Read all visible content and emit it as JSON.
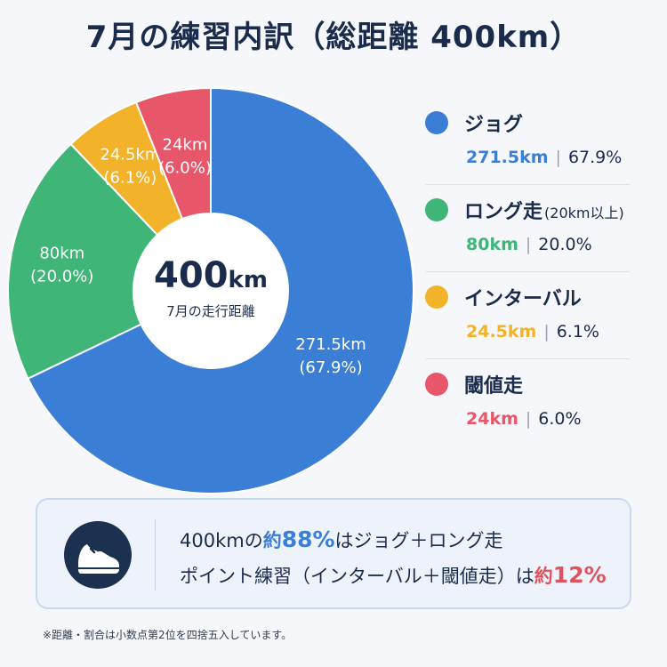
{
  "title": "7月の練習内訳（総距離 400km）",
  "chart_data": {
    "type": "pie",
    "title": "7月の練習内訳（総距離 400km）",
    "donut": true,
    "center": {
      "total": "400",
      "unit": "km",
      "label": "7月の走行距離"
    },
    "slices": [
      {
        "name": "ジョグ",
        "note": "",
        "value": 271.5,
        "value_label": "271.5km",
        "percent_label": "(67.9%)",
        "legend_km": "271.5km",
        "legend_pct": "67.9%",
        "color": "#3a7fd5"
      },
      {
        "name": "ロング走",
        "note": "(20km以上)",
        "value": 80,
        "value_label": "80km",
        "percent_label": "(20.0%)",
        "legend_km": "80km",
        "legend_pct": "20.0%",
        "color": "#3fb577"
      },
      {
        "name": "インターバル",
        "note": "",
        "value": 24.5,
        "value_label": "24.5km",
        "percent_label": "(6.1%)",
        "legend_km": "24.5km",
        "legend_pct": "6.1%",
        "color": "#f2b229"
      },
      {
        "name": "閾値走",
        "note": "",
        "value": 24,
        "value_label": "24km",
        "percent_label": "(6.0%)",
        "legend_km": "24km",
        "legend_pct": "6.0%",
        "color": "#e8566a"
      }
    ],
    "legend_position": "right"
  },
  "summary": {
    "icon": "running-shoe-icon",
    "line1": {
      "pre": "400kmの",
      "hl_a": "約",
      "hl_b": "88%",
      "post": "はジョグ＋ロング走"
    },
    "line2": {
      "pre": "ポイント練習（インターバル＋閾値走）は",
      "hl_a": "約",
      "hl_b": "12%"
    }
  },
  "footnote": "※距離・割合は小数点第2位を四捨五入しています。"
}
